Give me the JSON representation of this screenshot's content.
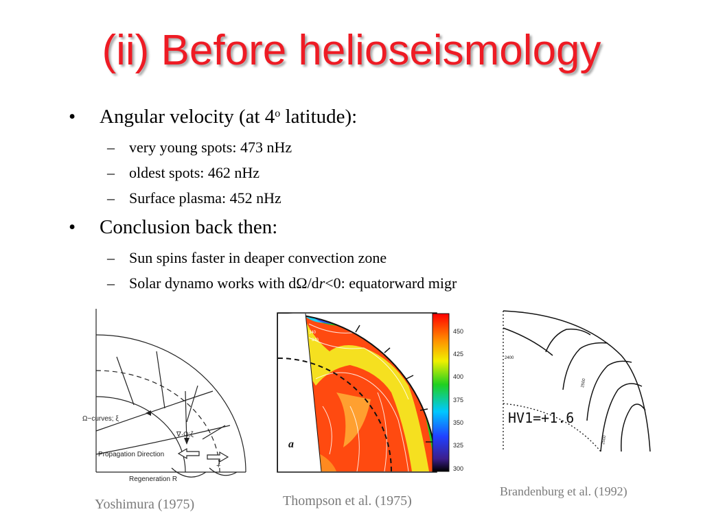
{
  "slide": {
    "title": "(ii) Before helioseismology",
    "bullets": [
      {
        "symbol": "•",
        "text_before": "Angular velocity (at 4",
        "superscript": "o",
        "text_after": " latitude):",
        "subitems": [
          {
            "dash": "–",
            "text": "very young spots: 473 nHz"
          },
          {
            "dash": "–",
            "text": "oldest spots: 462 nHz"
          },
          {
            "dash": "–",
            "text": "Surface plasma: 452 nHz"
          }
        ]
      },
      {
        "symbol": "•",
        "text": "Conclusion back then:",
        "subitems": [
          {
            "dash": "–",
            "text": "Sun spins faster in deaper convection zone"
          },
          {
            "dash": "–",
            "text_before": "Solar dynamo works with d",
            "omega": "Ω",
            "slash_d": "/d",
            "r": "r",
            "text_after": "<0: equatorward migr"
          }
        ]
      }
    ]
  },
  "figures": {
    "yoshimura": {
      "caption": "Yoshimura (1975)",
      "labels": {
        "omega_curves": "Ω−curves; ξ",
        "grad": "∇·Ω;ζ",
        "propagation": "Propagation Direction",
        "regeneration": "Regeneration R",
        "plus": "+"
      }
    },
    "thompson": {
      "caption": "Thompson et al. (1975)",
      "panel_letter": "a",
      "colorbar_ticks": [
        "450",
        "425",
        "400",
        "375",
        "350",
        "325",
        "300"
      ],
      "contour_labels": [
        "340",
        "340"
      ]
    },
    "brandenburg": {
      "caption": "Brandenburg et al. (1992)",
      "annotation": "HV1=+1.6",
      "contour_labels": [
        "2400",
        "2500",
        "2500"
      ]
    }
  }
}
